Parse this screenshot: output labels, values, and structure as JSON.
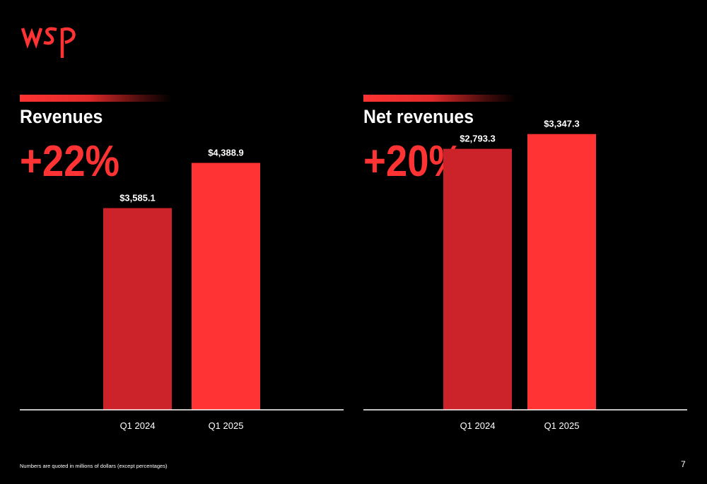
{
  "colors": {
    "accent": "#ff3333",
    "bar_prior": "#cc2229",
    "bar_current": "#ff3333",
    "axis": "#ffffff",
    "background": "#000000"
  },
  "logo": {
    "icon": "wsp-logo",
    "text": "wsp"
  },
  "panels": [
    {
      "title": "Revenues",
      "stat": "+22%"
    },
    {
      "title": "Net revenues",
      "stat": "+20%"
    }
  ],
  "chart_data": [
    {
      "type": "bar",
      "title": "Revenues",
      "categories": [
        "Q1 2024",
        "Q1 2025"
      ],
      "values": [
        3585.1,
        4388.9
      ],
      "labels": [
        "$3,585.1",
        "$4,388.9"
      ],
      "ylim": [
        0,
        5400
      ],
      "grid": false,
      "legend": "none"
    },
    {
      "type": "bar",
      "title": "Net revenues",
      "categories": [
        "Q1 2024",
        "Q1 2025"
      ],
      "values": [
        2793.3,
        3347.3
      ],
      "labels": [
        "$2,793.3",
        "$3,347.3"
      ],
      "ylim": [
        -7000,
        4400
      ],
      "grid": false,
      "legend": "none"
    }
  ],
  "footnote": "Numbers are quoted in millions of dollars (except percentages)",
  "page_number": "7"
}
